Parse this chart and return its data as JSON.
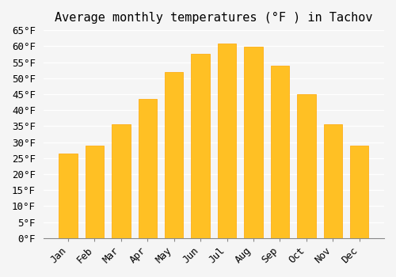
{
  "title": "Average monthly temperatures (°F ) in Tachov",
  "months": [
    "Jan",
    "Feb",
    "Mar",
    "Apr",
    "May",
    "Jun",
    "Jul",
    "Aug",
    "Sep",
    "Oct",
    "Nov",
    "Dec"
  ],
  "values": [
    26.5,
    28.8,
    35.5,
    43.5,
    52.0,
    57.5,
    60.8,
    59.8,
    54.0,
    45.0,
    35.5,
    28.8
  ],
  "bar_color": "#FFC024",
  "bar_edge_color": "#FFA500",
  "ylim": [
    0,
    65
  ],
  "yticks": [
    0,
    5,
    10,
    15,
    20,
    25,
    30,
    35,
    40,
    45,
    50,
    55,
    60,
    65
  ],
  "background_color": "#f5f5f5",
  "grid_color": "#ffffff",
  "title_fontsize": 11,
  "tick_fontsize": 9,
  "font_family": "monospace"
}
